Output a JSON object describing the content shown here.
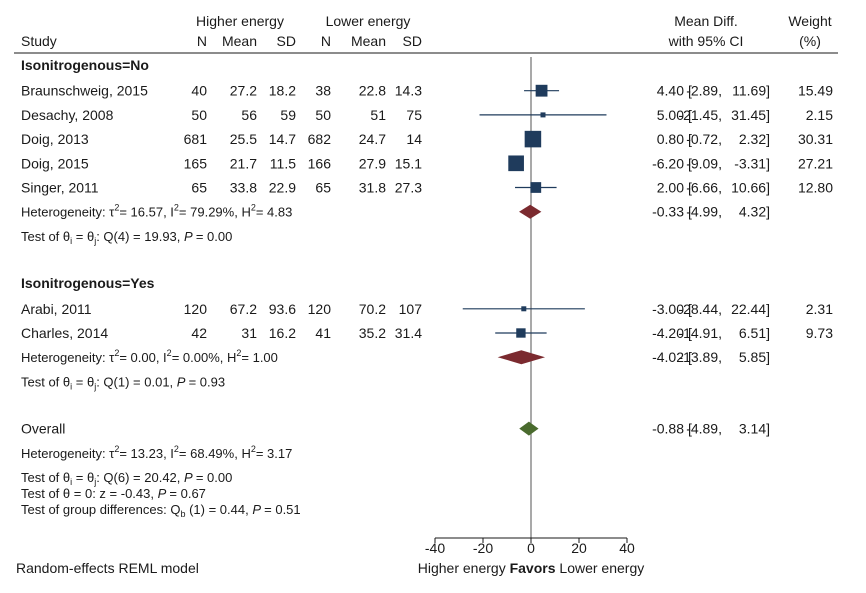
{
  "headers": {
    "group_higher": "Higher energy",
    "group_lower": "Lower energy",
    "study": "Study",
    "n": "N",
    "mean": "Mean",
    "sd": "SD",
    "effect_line1": "Mean Diff.",
    "effect_line2": "with 95% CI",
    "weight_line1": "Weight",
    "weight_line2": "(%)"
  },
  "footer": {
    "model": "Random-effects REML model",
    "favors_left": "Higher energy",
    "favors_center": "Favors",
    "favors_right": "Lower energy"
  },
  "colors": {
    "study_marker": "#1f3b5c",
    "subgroup_diamond": "#7b2a2f",
    "overall_diamond": "#4a6b2e",
    "reference_line": "#707070"
  },
  "chart_data": {
    "type": "forest",
    "xlim": [
      -40,
      40
    ],
    "xticks": [
      -40,
      -20,
      0,
      20,
      40
    ],
    "xtick_labels": [
      "-40",
      "-20",
      "0",
      "20",
      "40"
    ],
    "reference_value": 0,
    "groups": [
      {
        "label": "Isonitrogenous=No",
        "studies": [
          {
            "name": "Braunschweig, 2015",
            "n1": "40",
            "mean1": "27.2",
            "sd1": "18.2",
            "n2": "38",
            "mean2": "22.8",
            "sd2": "14.3",
            "md": 4.4,
            "lo": -2.89,
            "hi": 11.69,
            "md_text": "4.40",
            "lo_text": "-2.89,",
            "hi_text": "11.69]",
            "weight": 15.49,
            "weight_text": "15.49"
          },
          {
            "name": "Desachy, 2008",
            "n1": "50",
            "mean1": "56",
            "sd1": "59",
            "n2": "50",
            "mean2": "51",
            "sd2": "75",
            "md": 5.0,
            "lo": -21.45,
            "hi": 31.45,
            "md_text": "5.00",
            "lo_text": "-21.45,",
            "hi_text": "31.45]",
            "weight": 2.15,
            "weight_text": "2.15"
          },
          {
            "name": "Doig, 2013",
            "n1": "681",
            "mean1": "25.5",
            "sd1": "14.7",
            "n2": "682",
            "mean2": "24.7",
            "sd2": "14",
            "md": 0.8,
            "lo": -0.72,
            "hi": 2.32,
            "md_text": "0.80",
            "lo_text": "-0.72,",
            "hi_text": "2.32]",
            "weight": 30.31,
            "weight_text": "30.31"
          },
          {
            "name": "Doig, 2015",
            "n1": "165",
            "mean1": "21.7",
            "sd1": "11.5",
            "n2": "166",
            "mean2": "27.9",
            "sd2": "15.1",
            "md": -6.2,
            "lo": -9.09,
            "hi": -3.31,
            "md_text": "-6.20",
            "lo_text": "-9.09,",
            "hi_text": "-3.31]",
            "weight": 27.21,
            "weight_text": "27.21"
          },
          {
            "name": "Singer, 2011",
            "n1": "65",
            "mean1": "33.8",
            "sd1": "22.9",
            "n2": "65",
            "mean2": "31.8",
            "sd2": "27.3",
            "md": 2.0,
            "lo": -6.66,
            "hi": 10.66,
            "md_text": "2.00",
            "lo_text": "-6.66,",
            "hi_text": "10.66]",
            "weight": 12.8,
            "weight_text": "12.80"
          }
        ],
        "pooled": {
          "md": -0.33,
          "lo": -4.99,
          "hi": 4.32,
          "md_text": "-0.33",
          "lo_text": "-4.99,",
          "hi_text": "4.32]"
        },
        "heterogeneity": {
          "prefix": "Heterogeneity:  ",
          "tau2": "= 16.57, I",
          "i2": "= 79.29%, H",
          "h2": "= 4.83"
        },
        "homogeneity": {
          "prefix": "Test of  ",
          "stat": ": Q(4) = 19.93, ",
          "p": "= 0.00"
        }
      },
      {
        "label": "Isonitrogenous=Yes",
        "studies": [
          {
            "name": "Arabi, 2011",
            "n1": "120",
            "mean1": "67.2",
            "sd1": "93.6",
            "n2": "120",
            "mean2": "70.2",
            "sd2": "107",
            "md": -3.0,
            "lo": -28.44,
            "hi": 22.44,
            "md_text": "-3.00",
            "lo_text": "-28.44,",
            "hi_text": "22.44]",
            "weight": 2.31,
            "weight_text": "2.31"
          },
          {
            "name": "Charles, 2014",
            "n1": "42",
            "mean1": "31",
            "sd1": "16.2",
            "n2": "41",
            "mean2": "35.2",
            "sd2": "31.4",
            "md": -4.2,
            "lo": -14.91,
            "hi": 6.51,
            "md_text": "-4.20",
            "lo_text": "-14.91,",
            "hi_text": "6.51]",
            "weight": 9.73,
            "weight_text": "9.73"
          }
        ],
        "pooled": {
          "md": -4.02,
          "lo": -13.89,
          "hi": 5.85,
          "md_text": "-4.02",
          "lo_text": "-13.89,",
          "hi_text": "5.85]"
        },
        "heterogeneity": {
          "prefix": "Heterogeneity:  ",
          "tau2": "= 0.00, I",
          "i2": "= 0.00%, H",
          "h2": "= 1.00"
        },
        "homogeneity": {
          "prefix": "Test of  ",
          "stat": ": Q(1) = 0.01, ",
          "p": "= 0.93"
        }
      }
    ],
    "overall": {
      "label": "Overall",
      "md": -0.88,
      "lo": -4.89,
      "hi": 3.14,
      "md_text": "-0.88",
      "lo_text": "-4.89,",
      "hi_text": "3.14]",
      "heterogeneity": {
        "prefix": "Heterogeneity:  ",
        "tau2": "= 13.23, I",
        "i2": "= 68.49%, H",
        "h2": "= 3.17"
      },
      "homogeneity": {
        "prefix": "Test of  ",
        "stat": ": Q(6) = 20.42, ",
        "p": "= 0.00"
      },
      "zero_test": {
        "prefix": "Test of  ",
        "theta0": "θ = 0: z = -0.43, ",
        "p": "= 0.67"
      },
      "group_diff": {
        "prefix": "Test of group differences: Q",
        "stat": " (1) = 0.44, ",
        "p": "= 0.51"
      }
    }
  }
}
